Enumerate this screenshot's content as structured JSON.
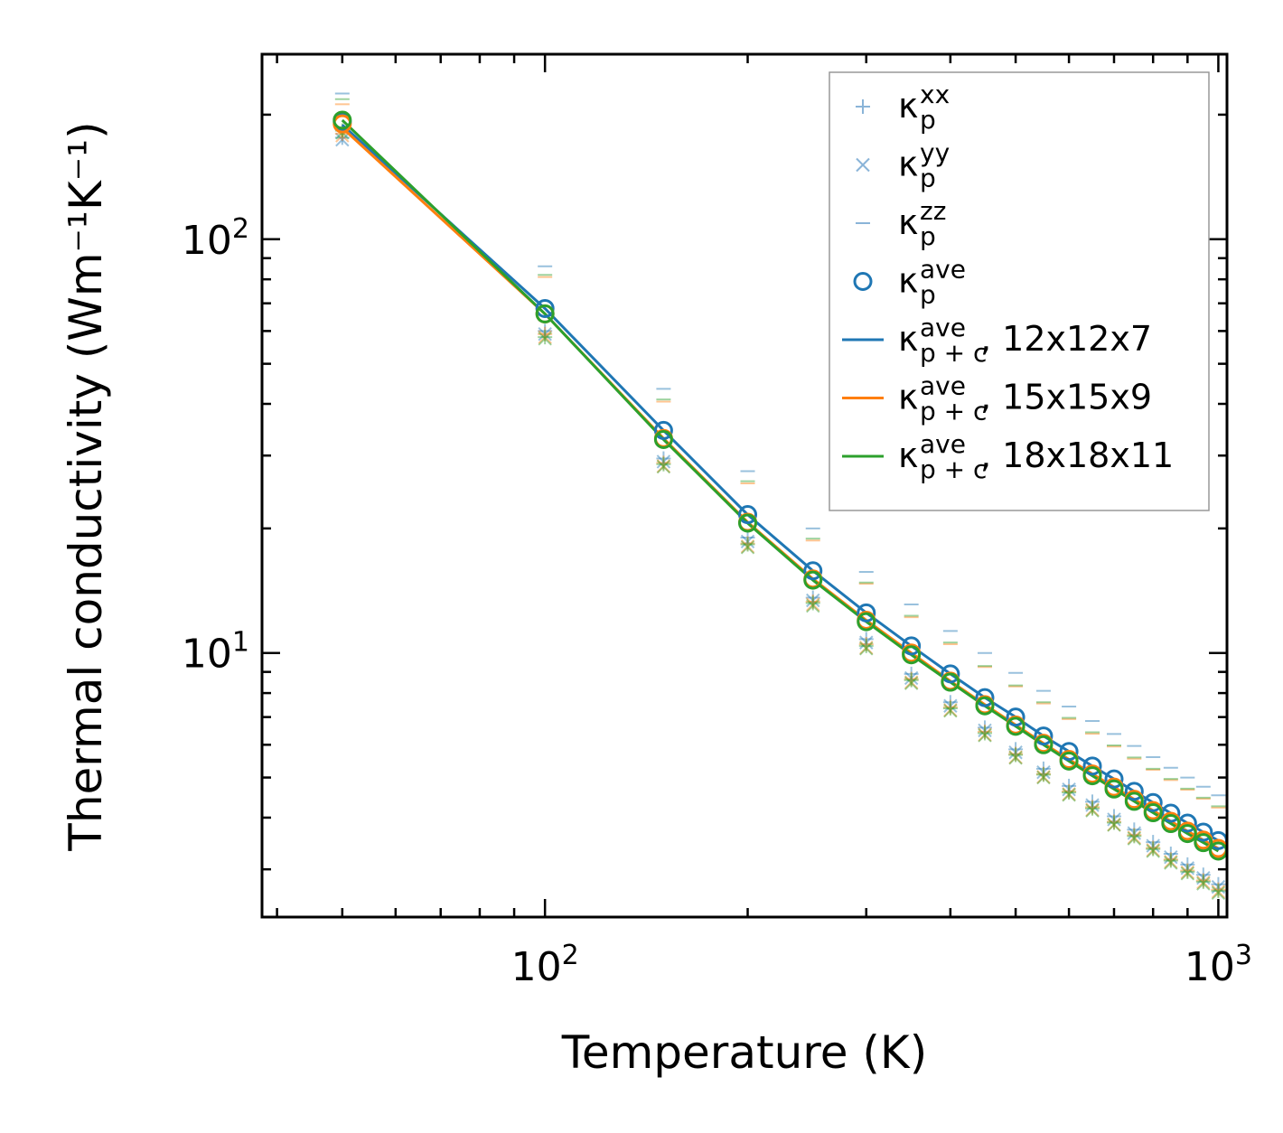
{
  "chart_data": {
    "type": "line",
    "xlabel": "Temperature (K)",
    "ylabel": "Thermal conductivity (Wm⁻¹K⁻¹)",
    "xscale": "log",
    "yscale": "log",
    "xlim": [
      38,
      1030
    ],
    "ylim": [
      2.3,
      280
    ],
    "x_major_ticks": [
      {
        "value": 100,
        "base": "10",
        "exp": "2"
      },
      {
        "value": 1000,
        "base": "10",
        "exp": "3"
      }
    ],
    "y_major_ticks": [
      {
        "value": 10,
        "base": "10",
        "exp": "1"
      },
      {
        "value": 100,
        "base": "10",
        "exp": "2"
      }
    ],
    "legend_position": "top-right",
    "colors": {
      "blue": "#1f77b4",
      "orange": "#ff7f0e",
      "green": "#2ca02c",
      "light_blue": "#8ab4d8"
    },
    "x": [
      50,
      100,
      150,
      200,
      250,
      300,
      350,
      400,
      450,
      500,
      550,
      600,
      650,
      700,
      750,
      800,
      850,
      900,
      950,
      1000
    ],
    "series": [
      {
        "name": "12x12x7",
        "color": "#1f77b4",
        "pxx": [
          176,
          60,
          29.5,
          19.0,
          13.6,
          10.8,
          8.9,
          7.6,
          6.6,
          5.85,
          5.25,
          4.77,
          4.37,
          4.03,
          3.74,
          3.49,
          3.27,
          3.08,
          2.91,
          2.76
        ],
        "pyy": [
          174,
          59,
          29.0,
          18.6,
          13.4,
          10.6,
          8.7,
          7.45,
          6.5,
          5.75,
          5.15,
          4.68,
          4.29,
          3.96,
          3.67,
          3.42,
          3.21,
          3.02,
          2.86,
          2.72
        ],
        "pzz": [
          225,
          86,
          43.5,
          27.5,
          20.0,
          15.7,
          13.1,
          11.3,
          10.0,
          8.95,
          8.1,
          7.42,
          6.85,
          6.37,
          5.96,
          5.6,
          5.28,
          5.0,
          4.75,
          4.53
        ],
        "ave": [
          192,
          68,
          34.5,
          21.6,
          15.8,
          12.5,
          10.4,
          8.9,
          7.8,
          7.0,
          6.3,
          5.78,
          5.33,
          4.96,
          4.63,
          4.35,
          4.1,
          3.88,
          3.69,
          3.52
        ],
        "line": [
          189,
          68,
          34.5,
          21.6,
          15.8,
          12.5,
          10.4,
          8.9,
          7.8,
          7.0,
          6.3,
          5.78,
          5.33,
          4.96,
          4.63,
          4.35,
          4.1,
          3.88,
          3.69,
          3.52
        ]
      },
      {
        "name": "15x15x9",
        "color": "#ff7f0e",
        "pxx": [
          180,
          59,
          28.8,
          18.4,
          13.3,
          10.5,
          8.65,
          7.4,
          6.45,
          5.7,
          5.1,
          4.63,
          4.24,
          3.91,
          3.63,
          3.38,
          3.17,
          2.98,
          2.82,
          2.68
        ],
        "pyy": [
          178,
          58,
          28.3,
          18.1,
          13.1,
          10.3,
          8.5,
          7.28,
          6.35,
          5.6,
          5.02,
          4.56,
          4.18,
          3.85,
          3.58,
          3.34,
          3.13,
          2.95,
          2.79,
          2.65
        ],
        "pzz": [
          212,
          81,
          40.5,
          25.7,
          18.7,
          14.7,
          12.2,
          10.5,
          9.25,
          8.3,
          7.55,
          6.92,
          6.38,
          5.94,
          5.55,
          5.22,
          4.93,
          4.67,
          4.44,
          4.23
        ],
        "ave": [
          190,
          66,
          33.0,
          20.7,
          15.1,
          12.0,
          10.0,
          8.55,
          7.5,
          6.7,
          6.05,
          5.53,
          5.1,
          4.74,
          4.43,
          4.16,
          3.92,
          3.71,
          3.53,
          3.37
        ],
        "line": [
          186,
          66,
          33.0,
          20.7,
          15.1,
          12.0,
          10.0,
          8.55,
          7.5,
          6.7,
          6.05,
          5.53,
          5.1,
          4.74,
          4.43,
          4.16,
          3.92,
          3.71,
          3.53,
          3.37
        ]
      },
      {
        "name": "18x18x11",
        "color": "#2ca02c",
        "pxx": [
          183,
          58,
          28.6,
          18.3,
          13.2,
          10.4,
          8.6,
          7.35,
          6.4,
          5.67,
          5.08,
          4.6,
          4.21,
          3.89,
          3.61,
          3.36,
          3.15,
          2.96,
          2.8,
          2.66
        ],
        "pyy": [
          181,
          57.5,
          28.2,
          18.0,
          13.0,
          10.25,
          8.45,
          7.25,
          6.32,
          5.58,
          5.0,
          4.54,
          4.16,
          3.84,
          3.56,
          3.32,
          3.11,
          2.93,
          2.77,
          2.63
        ],
        "pzz": [
          218,
          82,
          41.0,
          26.0,
          18.9,
          14.8,
          12.3,
          10.6,
          9.3,
          8.35,
          7.6,
          6.97,
          6.43,
          5.98,
          5.59,
          5.25,
          4.96,
          4.7,
          4.47,
          4.26
        ],
        "ave": [
          194,
          66,
          32.8,
          20.6,
          15.0,
          11.9,
          9.9,
          8.5,
          7.45,
          6.65,
          6.0,
          5.48,
          5.05,
          4.69,
          4.38,
          4.11,
          3.87,
          3.66,
          3.48,
          3.32
        ],
        "line": [
          194,
          66,
          32.8,
          20.6,
          15.0,
          11.9,
          9.9,
          8.5,
          7.45,
          6.65,
          6.0,
          5.48,
          5.05,
          4.69,
          4.38,
          4.11,
          3.87,
          3.66,
          3.48,
          3.32
        ]
      }
    ],
    "legend": [
      {
        "kind": "plus",
        "symbol": "κ",
        "sub": "p",
        "sup": "xx",
        "suffix": ""
      },
      {
        "kind": "x",
        "symbol": "κ",
        "sub": "p",
        "sup": "yy",
        "suffix": ""
      },
      {
        "kind": "dash",
        "symbol": "κ",
        "sub": "p",
        "sup": "zz",
        "suffix": ""
      },
      {
        "kind": "circle",
        "symbol": "κ",
        "sub": "p",
        "sup": "ave",
        "suffix": ""
      },
      {
        "kind": "line-blue",
        "symbol": "κ",
        "sub": "p + c",
        "sup": "ave",
        "suffix": ", 12x12x7"
      },
      {
        "kind": "line-orange",
        "symbol": "κ",
        "sub": "p + c",
        "sup": "ave",
        "suffix": ", 15x15x9"
      },
      {
        "kind": "line-green",
        "symbol": "κ",
        "sub": "p + c",
        "sup": "ave",
        "suffix": ", 18x18x11"
      }
    ]
  }
}
